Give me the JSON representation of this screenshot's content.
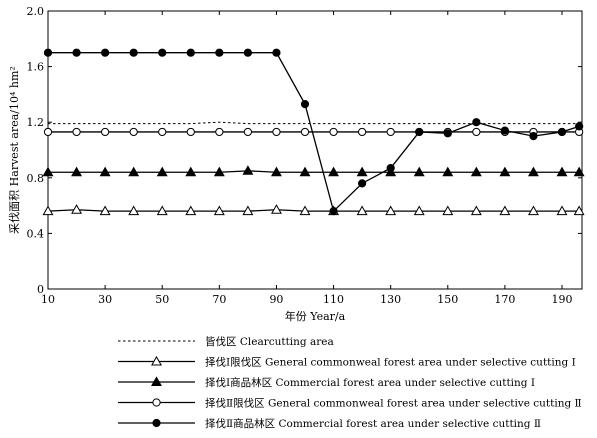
{
  "chart_data": {
    "type": "line",
    "title": "",
    "xlabel": "年份 Year/a",
    "ylabel": "采伐面积 Harvest area/10⁴ hm²",
    "xlim": [
      10,
      197
    ],
    "ylim": [
      0.0,
      2.0
    ],
    "x_ticks": [
      10,
      30,
      50,
      70,
      90,
      110,
      130,
      150,
      170,
      190
    ],
    "y_ticks": [
      0.0,
      0.4,
      0.8,
      1.2,
      1.6,
      2.0
    ],
    "x_tick_labels": [
      "10",
      "30",
      "50",
      "70",
      "90",
      "110",
      "130",
      "150",
      "170",
      "190"
    ],
    "y_tick_labels": [
      "0",
      "0.4",
      "0.8",
      "1.2",
      "1.6",
      "2.0"
    ],
    "grid": false,
    "legend_position": "bottom",
    "x": [
      10,
      20,
      30,
      40,
      50,
      60,
      70,
      80,
      90,
      100,
      110,
      120,
      130,
      140,
      150,
      160,
      170,
      180,
      190,
      196
    ],
    "series": [
      {
        "name": "皆伐区 Clearcutting area",
        "style": "dotted",
        "marker": "none",
        "values": [
          1.19,
          1.19,
          1.19,
          1.19,
          1.19,
          1.19,
          1.2,
          1.19,
          1.19,
          1.19,
          1.19,
          1.19,
          1.19,
          1.19,
          1.19,
          1.19,
          1.19,
          1.19,
          1.19,
          1.19
        ]
      },
      {
        "name": "择伐Ⅰ限伐区 General commonweal forest area under selective cutting Ⅰ",
        "style": "solid",
        "marker": "open-triangle",
        "values": [
          0.56,
          0.57,
          0.56,
          0.56,
          0.56,
          0.56,
          0.56,
          0.56,
          0.57,
          0.56,
          0.56,
          0.56,
          0.56,
          0.56,
          0.56,
          0.56,
          0.56,
          0.56,
          0.56,
          0.56
        ]
      },
      {
        "name": "择伐Ⅰ商品林区 Commercial forest area under selective cutting Ⅰ",
        "style": "solid",
        "marker": "filled-triangle",
        "values": [
          0.84,
          0.84,
          0.84,
          0.84,
          0.84,
          0.84,
          0.84,
          0.85,
          0.84,
          0.84,
          0.84,
          0.84,
          0.84,
          0.84,
          0.84,
          0.84,
          0.84,
          0.84,
          0.84,
          0.84
        ]
      },
      {
        "name": "择伐Ⅱ限伐区 General commonweal forest area under selective cutting Ⅱ",
        "style": "solid",
        "marker": "open-circle",
        "values": [
          1.13,
          1.13,
          1.13,
          1.13,
          1.13,
          1.13,
          1.13,
          1.13,
          1.13,
          1.13,
          1.13,
          1.13,
          1.13,
          1.13,
          1.13,
          1.13,
          1.13,
          1.13,
          1.13,
          1.13
        ]
      },
      {
        "name": "择伐Ⅱ商品林区 Commercial forest area under selective cutting Ⅱ",
        "style": "solid",
        "marker": "filled-circle",
        "values": [
          1.7,
          1.7,
          1.7,
          1.7,
          1.7,
          1.7,
          1.7,
          1.7,
          1.7,
          1.33,
          0.56,
          0.76,
          0.87,
          1.13,
          1.12,
          1.2,
          1.14,
          1.1,
          1.13,
          1.17
        ]
      }
    ]
  }
}
